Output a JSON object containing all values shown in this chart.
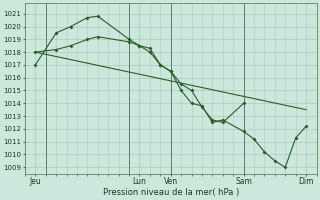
{
  "bg_color": "#cce8dc",
  "grid_color": "#aacabc",
  "line_color": "#2a5c2a",
  "xlabel": "Pression niveau de la mer( hPa )",
  "ylim": [
    1008.5,
    1021.8
  ],
  "yticks": [
    1009,
    1010,
    1011,
    1012,
    1013,
    1014,
    1015,
    1016,
    1017,
    1018,
    1019,
    1020,
    1021
  ],
  "xlim": [
    0,
    14.0
  ],
  "xtick_labels": [
    "Jeu",
    "Lun",
    "Ven",
    "Sam",
    "Dim"
  ],
  "xtick_positions": [
    0.5,
    5.5,
    7.0,
    10.5,
    13.5
  ],
  "x_vlines": [
    1.0,
    5.0,
    7.0,
    10.5,
    14.0
  ],
  "line1_marked": {
    "x": [
      0.5,
      1.5,
      2.2,
      3.0,
      3.5,
      5.0,
      5.5,
      6.0,
      6.5,
      7.0,
      7.5,
      8.0,
      8.5,
      9.0,
      9.5,
      10.5
    ],
    "y": [
      1017.0,
      1019.5,
      1020.0,
      1020.7,
      1020.8,
      1019.0,
      1018.5,
      1018.3,
      1017.0,
      1016.5,
      1015.5,
      1015.0,
      1013.7,
      1012.7,
      1012.5,
      1014.0
    ]
  },
  "line2_marked": {
    "x": [
      0.5,
      1.5,
      2.2,
      3.0,
      3.5,
      5.0,
      5.5,
      6.0,
      6.5,
      7.0,
      7.5,
      8.0,
      8.5,
      9.0,
      9.5,
      10.5,
      11.0,
      11.5,
      12.0,
      12.5,
      13.0,
      13.5
    ],
    "y": [
      1018.0,
      1018.2,
      1018.5,
      1019.0,
      1019.2,
      1018.8,
      1018.5,
      1018.0,
      1017.0,
      1016.5,
      1015.0,
      1014.0,
      1013.8,
      1012.5,
      1012.7,
      1011.8,
      1011.2,
      1010.2,
      1009.5,
      1009.0,
      1011.3,
      1012.2
    ]
  },
  "line3_straight": {
    "x": [
      0.5,
      13.5
    ],
    "y": [
      1018.0,
      1013.5
    ]
  }
}
